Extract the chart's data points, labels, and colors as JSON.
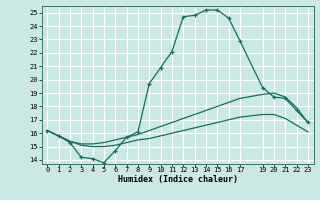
{
  "xlabel": "Humidex (Indice chaleur)",
  "background_color": "#cbe8e4",
  "grid_color": "#ffffff",
  "line_color": "#1a6b5e",
  "xlim": [
    -0.5,
    23.5
  ],
  "ylim": [
    13.7,
    25.5
  ],
  "yticks": [
    14,
    15,
    16,
    17,
    18,
    19,
    20,
    21,
    22,
    23,
    24,
    25
  ],
  "xticks": [
    0,
    1,
    2,
    3,
    4,
    5,
    6,
    7,
    8,
    9,
    10,
    11,
    12,
    13,
    14,
    15,
    16,
    17,
    19,
    20,
    21,
    22,
    23
  ],
  "line1_x": [
    0,
    1,
    2,
    3,
    4,
    5,
    6,
    7,
    8,
    9,
    10,
    11,
    12,
    13,
    14,
    15,
    16,
    17,
    19,
    20,
    21,
    22,
    23
  ],
  "line1_y": [
    16.2,
    15.8,
    15.3,
    14.2,
    14.1,
    13.8,
    14.7,
    15.7,
    16.1,
    19.7,
    20.9,
    22.1,
    24.7,
    24.8,
    25.2,
    25.2,
    24.6,
    22.9,
    19.4,
    18.7,
    18.6,
    17.7,
    16.8
  ],
  "line2_x": [
    0,
    1,
    2,
    3,
    4,
    5,
    6,
    7,
    8,
    9,
    10,
    11,
    12,
    13,
    14,
    15,
    16,
    17,
    19,
    20,
    21,
    22,
    23
  ],
  "line2_y": [
    16.2,
    15.8,
    15.4,
    15.2,
    15.2,
    15.3,
    15.5,
    15.7,
    15.9,
    16.2,
    16.5,
    16.8,
    17.1,
    17.4,
    17.7,
    18.0,
    18.3,
    18.6,
    18.9,
    19.0,
    18.7,
    17.9,
    16.8
  ],
  "line3_x": [
    0,
    1,
    2,
    3,
    4,
    5,
    6,
    7,
    8,
    9,
    10,
    11,
    12,
    13,
    14,
    15,
    16,
    17,
    19,
    20,
    21,
    22,
    23
  ],
  "line3_y": [
    16.2,
    15.8,
    15.4,
    15.1,
    15.0,
    15.0,
    15.1,
    15.3,
    15.5,
    15.6,
    15.8,
    16.0,
    16.2,
    16.4,
    16.6,
    16.8,
    17.0,
    17.2,
    17.4,
    17.4,
    17.1,
    16.6,
    16.1
  ]
}
